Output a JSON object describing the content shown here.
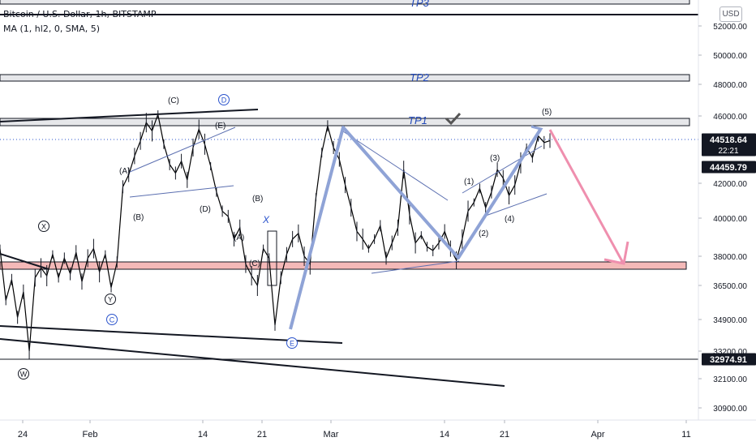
{
  "header": {
    "symbol": "Bitcoin / U.S. Dollar, 1h, BITSTAMP",
    "indicator": "MA (1, hl2, 0, SMA, 5)"
  },
  "currency_button": "USD",
  "chart_data": {
    "type": "line",
    "title": "Bitcoin / U.S. Dollar, 1h, BITSTAMP",
    "xlabel": "",
    "ylabel": "",
    "y_ticks": [
      52000,
      50000,
      48000,
      46000,
      42000,
      40000,
      38000,
      36500,
      34900,
      33200,
      32100,
      30900
    ],
    "y_tick_labels": [
      "52000.00",
      "50000.00",
      "48000.00",
      "46000.00",
      "42000.00",
      "40000.00",
      "38000.00",
      "36500.00",
      "34900.00",
      "33200.00",
      "32100.00",
      "30900.00"
    ],
    "x_ticks": [
      "24",
      "Feb",
      "14",
      "21",
      "Mar",
      "14",
      "21",
      "Apr",
      "11"
    ],
    "price_badges": [
      {
        "label": "44518.64",
        "sub": "22:21",
        "kind": "last",
        "color": "#131722"
      },
      {
        "label": "44459.79",
        "kind": "ma",
        "color": "#131722"
      },
      {
        "label": "32974.91",
        "kind": "level",
        "color": "#131722"
      }
    ],
    "series": [
      {
        "values": [
          38400,
          35800,
          36800,
          35000,
          36200,
          33200,
          36900,
          37400,
          37000,
          38100,
          36900,
          37900,
          37100,
          38200,
          36700,
          37900,
          38400,
          37200,
          38100,
          36400,
          37700,
          41800,
          42500,
          43600,
          44500,
          45600,
          45100,
          46100,
          44300,
          43100,
          42600,
          43300,
          42200,
          44100,
          45200,
          44300,
          43000,
          41500,
          40400,
          40100,
          38900,
          39500,
          37600,
          37000,
          36500,
          38400,
          37900,
          34600,
          36900,
          38100,
          38900,
          39200,
          38000,
          37600,
          41200,
          43800,
          45400,
          44100,
          43400,
          41900,
          40600,
          39300,
          38900,
          38400,
          38900,
          39600,
          37900,
          38700,
          39500,
          42800,
          40200,
          38700,
          39100,
          38500,
          38300,
          38700,
          39300,
          38400,
          37800,
          38900,
          40400,
          40900,
          41700,
          40600,
          41500,
          42800,
          42300,
          41300,
          41900,
          43200,
          44100,
          43500,
          44800,
          44400,
          44518.64
        ]
      }
    ],
    "annotations": {
      "tp_labels": [
        "TP3",
        "TP2",
        "TP1"
      ],
      "wave_labels": [
        "(A)",
        "(B)",
        "(C)",
        "(B)",
        "(A)",
        "(C)",
        "(D)",
        "(E)",
        "X",
        "(1)",
        "(2)",
        "(3)",
        "(4)",
        "(5)"
      ],
      "circled_labels": [
        "X",
        "Y",
        "W",
        "C",
        "D",
        "E"
      ]
    },
    "colors": {
      "candles": "#000000",
      "resistance_box": "#f4b9b8",
      "target_arrow": "#ef8fae",
      "wave_path": "#8fa3d6",
      "tp_text": "#2148b8",
      "blue_label": "#2a53cc"
    },
    "grid": false
  }
}
